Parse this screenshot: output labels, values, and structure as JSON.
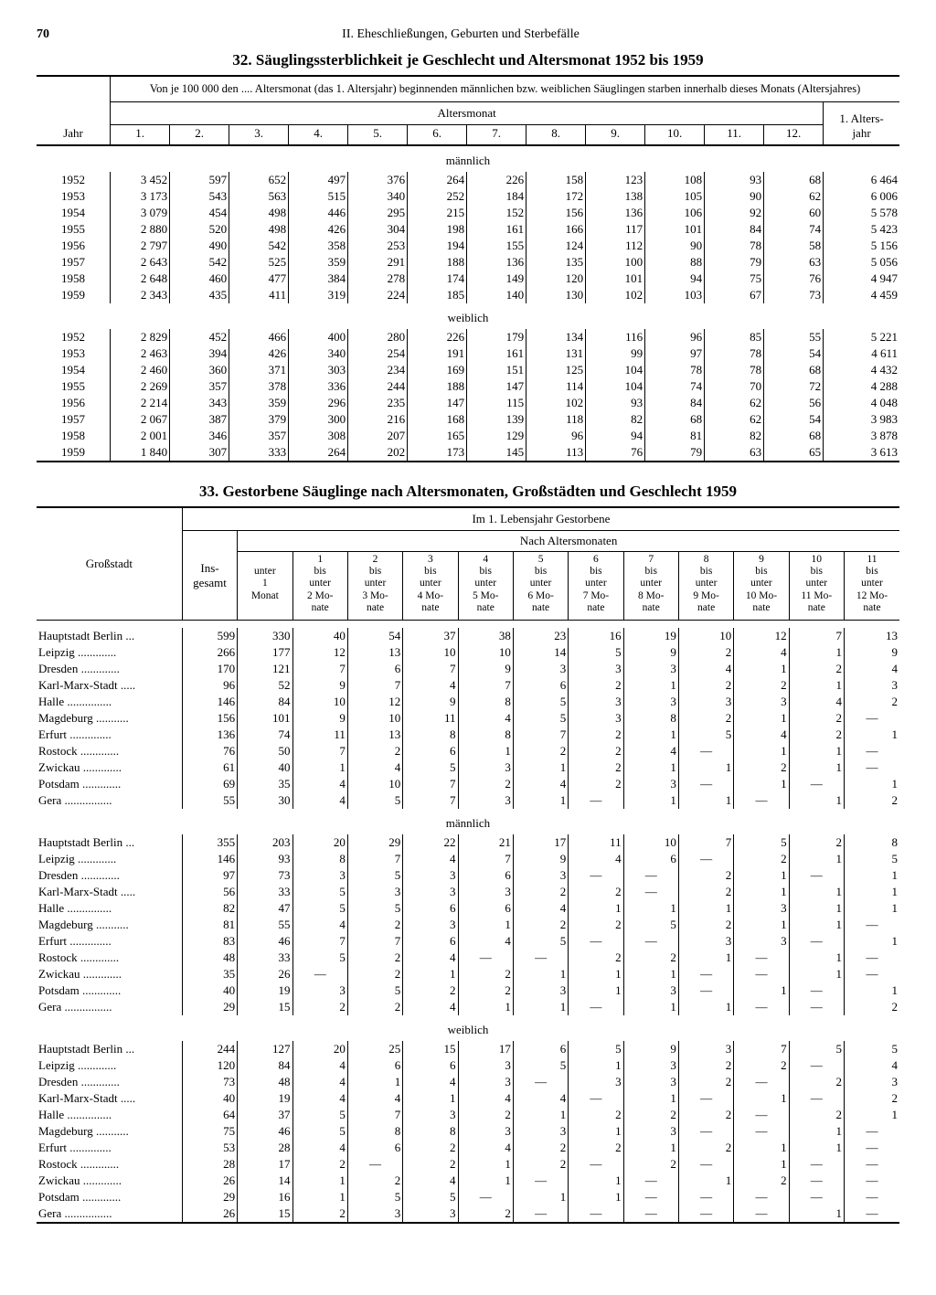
{
  "page": {
    "number": "70",
    "chapter": "II. Eheschließungen, Geburten und Sterbefälle"
  },
  "dash": "—",
  "table32": {
    "title": "32. Säuglingssterblichkeit je Geschlecht und Altersmonat 1952 bis 1959",
    "note": "Von je 100 000 den .... Altersmonat (das 1. Altersjahr) beginnenden männlichen bzw. weiblichen Säuglingen starben innerhalb dieses Monats (Altersjahres)",
    "jahr_label": "Jahr",
    "altersmonat_label": "Altersmonat",
    "altersjahr_label": "1. Alters-\njahr",
    "month_headers": [
      "1.",
      "2.",
      "3.",
      "4.",
      "5.",
      "6.",
      "7.",
      "8.",
      "9.",
      "10.",
      "11.",
      "12."
    ],
    "section_m": "männlich",
    "section_w": "weiblich",
    "rows_m": [
      {
        "y": "1952",
        "v": [
          "3 452",
          "597",
          "652",
          "497",
          "376",
          "264",
          "226",
          "158",
          "123",
          "108",
          "93",
          "68"
        ],
        "t": "6 464"
      },
      {
        "y": "1953",
        "v": [
          "3 173",
          "543",
          "563",
          "515",
          "340",
          "252",
          "184",
          "172",
          "138",
          "105",
          "90",
          "62"
        ],
        "t": "6 006"
      },
      {
        "y": "1954",
        "v": [
          "3 079",
          "454",
          "498",
          "446",
          "295",
          "215",
          "152",
          "156",
          "136",
          "106",
          "92",
          "60"
        ],
        "t": "5 578"
      },
      {
        "y": "1955",
        "v": [
          "2 880",
          "520",
          "498",
          "426",
          "304",
          "198",
          "161",
          "166",
          "117",
          "101",
          "84",
          "74"
        ],
        "t": "5 423"
      },
      {
        "y": "1956",
        "v": [
          "2 797",
          "490",
          "542",
          "358",
          "253",
          "194",
          "155",
          "124",
          "112",
          "90",
          "78",
          "58"
        ],
        "t": "5 156"
      },
      {
        "y": "1957",
        "v": [
          "2 643",
          "542",
          "525",
          "359",
          "291",
          "188",
          "136",
          "135",
          "100",
          "88",
          "79",
          "63"
        ],
        "t": "5 056"
      },
      {
        "y": "1958",
        "v": [
          "2 648",
          "460",
          "477",
          "384",
          "278",
          "174",
          "149",
          "120",
          "101",
          "94",
          "75",
          "76"
        ],
        "t": "4 947"
      },
      {
        "y": "1959",
        "v": [
          "2 343",
          "435",
          "411",
          "319",
          "224",
          "185",
          "140",
          "130",
          "102",
          "103",
          "67",
          "73"
        ],
        "t": "4 459"
      }
    ],
    "rows_w": [
      {
        "y": "1952",
        "v": [
          "2 829",
          "452",
          "466",
          "400",
          "280",
          "226",
          "179",
          "134",
          "116",
          "96",
          "85",
          "55"
        ],
        "t": "5 221"
      },
      {
        "y": "1953",
        "v": [
          "2 463",
          "394",
          "426",
          "340",
          "254",
          "191",
          "161",
          "131",
          "99",
          "97",
          "78",
          "54"
        ],
        "t": "4 611"
      },
      {
        "y": "1954",
        "v": [
          "2 460",
          "360",
          "371",
          "303",
          "234",
          "169",
          "151",
          "125",
          "104",
          "78",
          "78",
          "68"
        ],
        "t": "4 432"
      },
      {
        "y": "1955",
        "v": [
          "2 269",
          "357",
          "378",
          "336",
          "244",
          "188",
          "147",
          "114",
          "104",
          "74",
          "70",
          "72"
        ],
        "t": "4 288"
      },
      {
        "y": "1956",
        "v": [
          "2 214",
          "343",
          "359",
          "296",
          "235",
          "147",
          "115",
          "102",
          "93",
          "84",
          "62",
          "56"
        ],
        "t": "4 048"
      },
      {
        "y": "1957",
        "v": [
          "2 067",
          "387",
          "379",
          "300",
          "216",
          "168",
          "139",
          "118",
          "82",
          "68",
          "62",
          "54"
        ],
        "t": "3 983"
      },
      {
        "y": "1958",
        "v": [
          "2 001",
          "346",
          "357",
          "308",
          "207",
          "165",
          "129",
          "96",
          "94",
          "81",
          "82",
          "68"
        ],
        "t": "3 878"
      },
      {
        "y": "1959",
        "v": [
          "1 840",
          "307",
          "333",
          "264",
          "202",
          "173",
          "145",
          "113",
          "76",
          "79",
          "63",
          "65"
        ],
        "t": "3 613"
      }
    ]
  },
  "table33": {
    "title": "33. Gestorbene Säuglinge nach Altersmonaten, Großstädten und Geschlecht 1959",
    "top_label": "Im 1. Lebensjahr Gestorbene",
    "sub_label": "Nach Altersmonaten",
    "city_label": "Großstadt",
    "total_label": "Ins-\ngesamt",
    "col_headers": [
      "unter\n1\nMonat",
      "1\nbis\nunter\n2 Mo-\nnate",
      "2\nbis\nunter\n3 Mo-\nnate",
      "3\nbis\nunter\n4 Mo-\nnate",
      "4\nbis\nunter\n5 Mo-\nnate",
      "5\nbis\nunter\n6 Mo-\nnate",
      "6\nbis\nunter\n7 Mo-\nnate",
      "7\nbis\nunter\n8 Mo-\nnate",
      "8\nbis\nunter\n9 Mo-\nnate",
      "9\nbis\nunter\n10 Mo-\nnate",
      "10\nbis\nunter\n11 Mo-\nnate",
      "11\nbis\nunter\n12 Mo-\nnate"
    ],
    "section_total_implicit": true,
    "section_m": "männlich",
    "section_w": "weiblich",
    "cities": [
      "Hauptstadt Berlin",
      "Leipzig",
      "Dresden",
      "Karl-Marx-Stadt",
      "Halle",
      "Magdeburg",
      "Erfurt",
      "Rostock",
      "Zwickau",
      "Potsdam",
      "Gera"
    ],
    "rows_all": [
      {
        "t": "599",
        "v": [
          "330",
          "40",
          "54",
          "37",
          "38",
          "23",
          "16",
          "19",
          "10",
          "12",
          "7",
          "13"
        ]
      },
      {
        "t": "266",
        "v": [
          "177",
          "12",
          "13",
          "10",
          "10",
          "14",
          "5",
          "9",
          "2",
          "4",
          "1",
          "9"
        ]
      },
      {
        "t": "170",
        "v": [
          "121",
          "7",
          "6",
          "7",
          "9",
          "3",
          "3",
          "3",
          "4",
          "1",
          "2",
          "4"
        ]
      },
      {
        "t": "96",
        "v": [
          "52",
          "9",
          "7",
          "4",
          "7",
          "6",
          "2",
          "1",
          "2",
          "2",
          "1",
          "3"
        ]
      },
      {
        "t": "146",
        "v": [
          "84",
          "10",
          "12",
          "9",
          "8",
          "5",
          "3",
          "3",
          "3",
          "3",
          "4",
          "2"
        ]
      },
      {
        "t": "156",
        "v": [
          "101",
          "9",
          "10",
          "11",
          "4",
          "5",
          "3",
          "8",
          "2",
          "1",
          "2",
          "—"
        ]
      },
      {
        "t": "136",
        "v": [
          "74",
          "11",
          "13",
          "8",
          "8",
          "7",
          "2",
          "1",
          "5",
          "4",
          "2",
          "1"
        ]
      },
      {
        "t": "76",
        "v": [
          "50",
          "7",
          "2",
          "6",
          "1",
          "2",
          "2",
          "4",
          "—",
          "1",
          "1",
          "—"
        ]
      },
      {
        "t": "61",
        "v": [
          "40",
          "1",
          "4",
          "5",
          "3",
          "1",
          "2",
          "1",
          "1",
          "2",
          "1",
          "—"
        ]
      },
      {
        "t": "69",
        "v": [
          "35",
          "4",
          "10",
          "7",
          "2",
          "4",
          "2",
          "3",
          "—",
          "1",
          "—",
          "1"
        ]
      },
      {
        "t": "55",
        "v": [
          "30",
          "4",
          "5",
          "7",
          "3",
          "1",
          "—",
          "1",
          "1",
          "—",
          "1",
          "2"
        ]
      }
    ],
    "rows_m": [
      {
        "t": "355",
        "v": [
          "203",
          "20",
          "29",
          "22",
          "21",
          "17",
          "11",
          "10",
          "7",
          "5",
          "2",
          "8"
        ]
      },
      {
        "t": "146",
        "v": [
          "93",
          "8",
          "7",
          "4",
          "7",
          "9",
          "4",
          "6",
          "—",
          "2",
          "1",
          "5"
        ]
      },
      {
        "t": "97",
        "v": [
          "73",
          "3",
          "5",
          "3",
          "6",
          "3",
          "—",
          "—",
          "2",
          "1",
          "—",
          "1"
        ]
      },
      {
        "t": "56",
        "v": [
          "33",
          "5",
          "3",
          "3",
          "3",
          "2",
          "2",
          "—",
          "2",
          "1",
          "1",
          "1"
        ]
      },
      {
        "t": "82",
        "v": [
          "47",
          "5",
          "5",
          "6",
          "6",
          "4",
          "1",
          "1",
          "1",
          "3",
          "1",
          "1"
        ]
      },
      {
        "t": "81",
        "v": [
          "55",
          "4",
          "2",
          "3",
          "1",
          "2",
          "2",
          "5",
          "2",
          "1",
          "1",
          "—"
        ]
      },
      {
        "t": "83",
        "v": [
          "46",
          "7",
          "7",
          "6",
          "4",
          "5",
          "—",
          "—",
          "3",
          "3",
          "—",
          "1"
        ]
      },
      {
        "t": "48",
        "v": [
          "33",
          "5",
          "2",
          "4",
          "—",
          "—",
          "2",
          "2",
          "1",
          "—",
          "1",
          "—"
        ]
      },
      {
        "t": "35",
        "v": [
          "26",
          "—",
          "2",
          "1",
          "2",
          "1",
          "1",
          "1",
          "—",
          "—",
          "1",
          "—"
        ]
      },
      {
        "t": "40",
        "v": [
          "19",
          "3",
          "5",
          "2",
          "2",
          "3",
          "1",
          "3",
          "—",
          "1",
          "—",
          "1"
        ]
      },
      {
        "t": "29",
        "v": [
          "15",
          "2",
          "2",
          "4",
          "1",
          "1",
          "—",
          "1",
          "1",
          "—",
          "—",
          "2"
        ]
      }
    ],
    "rows_w": [
      {
        "t": "244",
        "v": [
          "127",
          "20",
          "25",
          "15",
          "17",
          "6",
          "5",
          "9",
          "3",
          "7",
          "5",
          "5"
        ]
      },
      {
        "t": "120",
        "v": [
          "84",
          "4",
          "6",
          "6",
          "3",
          "5",
          "1",
          "3",
          "2",
          "2",
          "—",
          "4"
        ]
      },
      {
        "t": "73",
        "v": [
          "48",
          "4",
          "1",
          "4",
          "3",
          "—",
          "3",
          "3",
          "2",
          "—",
          "2",
          "3"
        ]
      },
      {
        "t": "40",
        "v": [
          "19",
          "4",
          "4",
          "1",
          "4",
          "4",
          "—",
          "1",
          "—",
          "1",
          "—",
          "2"
        ]
      },
      {
        "t": "64",
        "v": [
          "37",
          "5",
          "7",
          "3",
          "2",
          "1",
          "2",
          "2",
          "2",
          "—",
          "2",
          "1"
        ]
      },
      {
        "t": "75",
        "v": [
          "46",
          "5",
          "8",
          "8",
          "3",
          "3",
          "1",
          "3",
          "—",
          "—",
          "1",
          "—"
        ]
      },
      {
        "t": "53",
        "v": [
          "28",
          "4",
          "6",
          "2",
          "4",
          "2",
          "2",
          "1",
          "2",
          "1",
          "1",
          "—"
        ]
      },
      {
        "t": "28",
        "v": [
          "17",
          "2",
          "—",
          "2",
          "1",
          "2",
          "—",
          "2",
          "—",
          "1",
          "—",
          "—"
        ]
      },
      {
        "t": "26",
        "v": [
          "14",
          "1",
          "2",
          "4",
          "1",
          "—",
          "1",
          "—",
          "1",
          "2",
          "—",
          "—"
        ]
      },
      {
        "t": "29",
        "v": [
          "16",
          "1",
          "5",
          "5",
          "—",
          "1",
          "1",
          "—",
          "—",
          "—",
          "—",
          "—"
        ]
      },
      {
        "t": "26",
        "v": [
          "15",
          "2",
          "3",
          "3",
          "2",
          "—",
          "—",
          "—",
          "—",
          "—",
          "1",
          "—"
        ]
      }
    ]
  }
}
